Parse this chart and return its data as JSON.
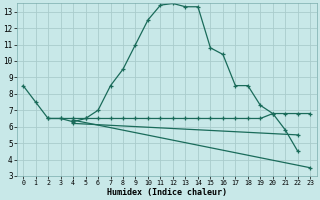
{
  "xlabel": "Humidex (Indice chaleur)",
  "background_color": "#c8e8e8",
  "grid_color": "#aacccc",
  "line_color": "#1a6b5a",
  "xlim": [
    -0.5,
    23.5
  ],
  "ylim": [
    3,
    13.5
  ],
  "xticks": [
    0,
    1,
    2,
    3,
    4,
    5,
    6,
    7,
    8,
    9,
    10,
    11,
    12,
    13,
    14,
    15,
    16,
    17,
    18,
    19,
    20,
    21,
    22,
    23
  ],
  "yticks": [
    3,
    4,
    5,
    6,
    7,
    8,
    9,
    10,
    11,
    12,
    13
  ],
  "line1_x": [
    0,
    1,
    2,
    3,
    4,
    5,
    6,
    7,
    8,
    9,
    10,
    11,
    12,
    13,
    14,
    15,
    16,
    17,
    18,
    19,
    20,
    21,
    22
  ],
  "line1_y": [
    8.5,
    7.5,
    6.5,
    6.5,
    6.3,
    6.5,
    7.0,
    8.5,
    9.5,
    11.0,
    12.5,
    13.4,
    13.5,
    13.3,
    13.3,
    10.8,
    10.4,
    8.5,
    8.5,
    7.3,
    6.8,
    5.8,
    4.5
  ],
  "line2_x": [
    2,
    3,
    4,
    5,
    6,
    7,
    8,
    9,
    10,
    11,
    12,
    13,
    14,
    15,
    16,
    17,
    18,
    19,
    20,
    21,
    22,
    23
  ],
  "line2_y": [
    6.5,
    6.5,
    6.5,
    6.5,
    6.5,
    6.5,
    6.5,
    6.5,
    6.5,
    6.5,
    6.5,
    6.5,
    6.5,
    6.5,
    6.5,
    6.5,
    6.5,
    6.5,
    6.8,
    6.8,
    6.8,
    6.8
  ],
  "line3_x": [
    4,
    23
  ],
  "line3_y": [
    6.4,
    3.5
  ],
  "line4_x": [
    4,
    22
  ],
  "line4_y": [
    6.2,
    5.5
  ]
}
